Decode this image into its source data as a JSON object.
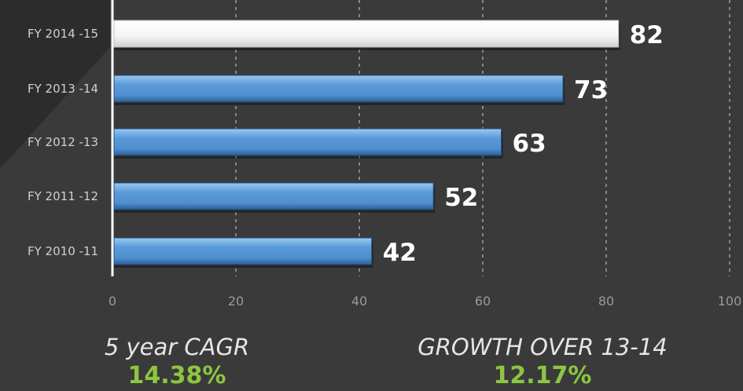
{
  "chart_data": {
    "type": "bar",
    "orientation": "horizontal",
    "categories": [
      "FY 2014 -15",
      "FY 2013 -14",
      "FY 2012 -13",
      "FY 2011 -12",
      "FY 2010 -11"
    ],
    "values": [
      82,
      73,
      63,
      52,
      42
    ],
    "value_labels": [
      "82",
      "73",
      "63",
      "52",
      "42"
    ],
    "highlight_index": 0,
    "xlim": [
      0,
      100
    ],
    "xticks": [
      0,
      20,
      40,
      60,
      80,
      100
    ],
    "xtick_labels": [
      "0",
      "20",
      "40",
      "60",
      "80",
      "100"
    ],
    "grid": "vertical dashed",
    "colors": {
      "bar": "#4f8fd0",
      "bar_highlight": "#ffffff",
      "background": "#3a3a3b",
      "accent": "#8dc63f"
    }
  },
  "stats": {
    "cagr": {
      "label": "5 year CAGR",
      "value": "14.38%"
    },
    "growth": {
      "label": "GROWTH OVER 13-14",
      "value": "12.17%"
    }
  }
}
